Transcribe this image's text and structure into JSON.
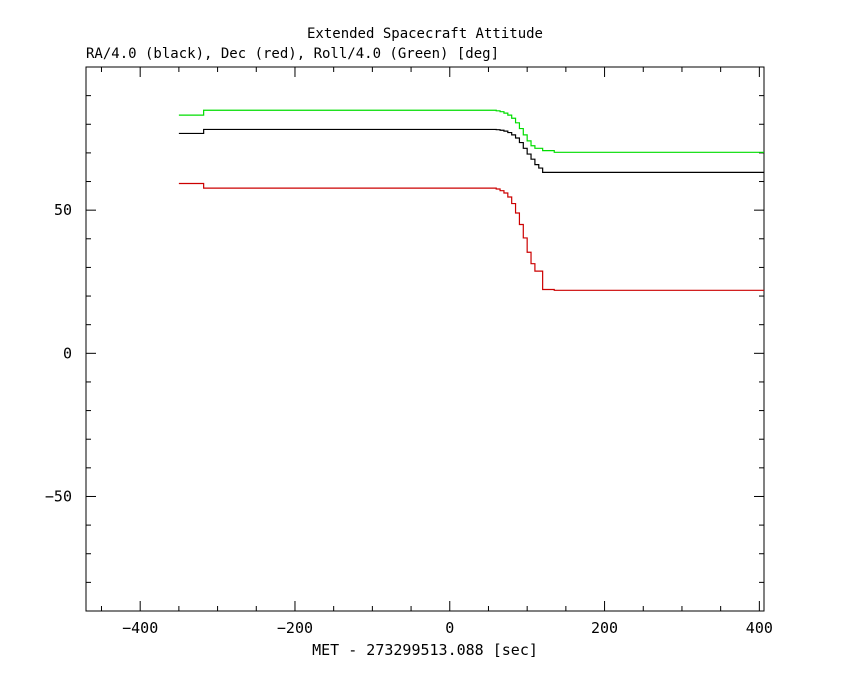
{
  "chart_data": {
    "type": "line",
    "title": "Extended Spacecraft Attitude",
    "subtitle": "RA/4.0 (black), Dec (red), Roll/4.0 (Green) [deg]",
    "xlabel": "MET - 273299513.088 [sec]",
    "ylabel": "",
    "xlim": [
      -470,
      406
    ],
    "ylim": [
      -90,
      100
    ],
    "x_ticks": [
      -400,
      -200,
      0,
      200,
      400
    ],
    "y_ticks": [
      -50,
      0,
      50
    ],
    "x_minor_step": 50,
    "y_minor_step": 10,
    "grid": false,
    "series": [
      {
        "name": "RA/4.0",
        "color": "#000000",
        "step": true,
        "points": [
          [
            -350,
            76.8
          ],
          [
            -318,
            78.2
          ],
          [
            55,
            78.2
          ],
          [
            60,
            78.1
          ],
          [
            65,
            77.9
          ],
          [
            70,
            77.6
          ],
          [
            75,
            77.1
          ],
          [
            80,
            76.3
          ],
          [
            85,
            75.2
          ],
          [
            90,
            73.6
          ],
          [
            95,
            71.6
          ],
          [
            100,
            69.6
          ],
          [
            105,
            67.8
          ],
          [
            110,
            65.9
          ],
          [
            115,
            64.7
          ],
          [
            120,
            63.2
          ],
          [
            406,
            63.2
          ]
        ]
      },
      {
        "name": "Dec",
        "color": "#cc0000",
        "step": true,
        "points": [
          [
            -350,
            59.3
          ],
          [
            -318,
            57.7
          ],
          [
            55,
            57.7
          ],
          [
            60,
            57.4
          ],
          [
            65,
            56.8
          ],
          [
            70,
            56.0
          ],
          [
            75,
            54.6
          ],
          [
            80,
            52.3
          ],
          [
            85,
            49.0
          ],
          [
            90,
            45.0
          ],
          [
            95,
            40.3
          ],
          [
            100,
            35.3
          ],
          [
            105,
            31.3
          ],
          [
            110,
            28.7
          ],
          [
            120,
            22.3
          ],
          [
            135,
            22.0
          ],
          [
            406,
            22.0
          ]
        ]
      },
      {
        "name": "Roll/4.0",
        "color": "#00dd00",
        "step": true,
        "points": [
          [
            -350,
            83.2
          ],
          [
            -318,
            84.9
          ],
          [
            55,
            84.9
          ],
          [
            60,
            84.7
          ],
          [
            65,
            84.4
          ],
          [
            70,
            83.9
          ],
          [
            75,
            83.2
          ],
          [
            80,
            82.1
          ],
          [
            85,
            80.5
          ],
          [
            90,
            78.5
          ],
          [
            95,
            76.3
          ],
          [
            100,
            74.2
          ],
          [
            105,
            72.5
          ],
          [
            110,
            71.6
          ],
          [
            120,
            70.8
          ],
          [
            135,
            70.2
          ],
          [
            406,
            70.2
          ]
        ]
      }
    ]
  }
}
